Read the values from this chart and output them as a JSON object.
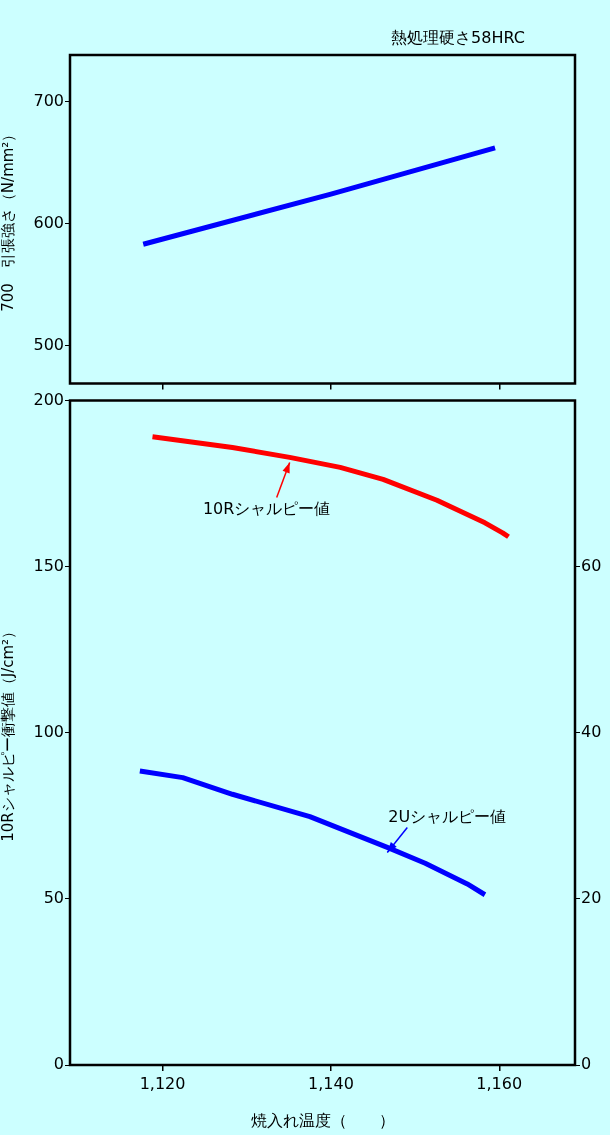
{
  "chart_data": [
    {
      "type": "line",
      "ylabel": "700　引張強さ（N/mm²）",
      "subtitle": "熱処理硬さ58HRC",
      "xlim": [
        1109,
        1169
      ],
      "xticks": [
        {
          "value": 1120,
          "label": null
        },
        {
          "value": 1140,
          "label": null
        },
        {
          "value": 1160,
          "label": null
        }
      ],
      "ylim": [
        469,
        738
      ],
      "yticks": [
        500,
        600,
        700
      ],
      "tick_labels": "y",
      "legend": false,
      "marker": "none",
      "line_style": "solid",
      "series": [
        {
          "color": "#0000ff",
          "x": [
            1117.7,
            1140,
            1159.5
          ],
          "values": [
            583,
            624,
            662
          ]
        }
      ]
    },
    {
      "type": "line",
      "xlabel": "焼入れ温度（　　）",
      "ylabel": "10Rシャルピー衝撃値（J/cm²）",
      "annotations": [
        {
          "text": "10Rシャルピー値",
          "x": 1135.1,
          "y": 182.9
        },
        {
          "text": "2Uシャルピー値",
          "x": 1146.7,
          "y": 65.5
        }
      ],
      "xlim": [
        1109,
        1169
      ],
      "xticks": [
        {
          "value": 1120,
          "label": "1,120"
        },
        {
          "value": 1140,
          "label": "1,140"
        },
        {
          "value": 1160,
          "label": "1,160"
        }
      ],
      "ylim": [
        0,
        200
      ],
      "yticks": [
        0,
        50,
        100,
        150,
        200
      ],
      "y2lim": [
        0,
        80
      ],
      "y2ticks": [
        0,
        20,
        40,
        60
      ],
      "legend": false,
      "marker": "none",
      "line_style": "solid",
      "series": [
        {
          "color": "#ff0000",
          "x": [
            1118.8,
            1128.3,
            1135.1,
            1141.1,
            1146.2,
            1152.6,
            1158.3,
            1160.4,
            1161.1
          ],
          "values": [
            189.1,
            185.9,
            182.9,
            179.9,
            176.3,
            170,
            163.2,
            160.2,
            159
          ]
        },
        {
          "color": "#0000ff",
          "axis": "y2",
          "x": [
            1117.3,
            1122.4,
            1128.3,
            1137.5,
            1146.7,
            1151.2,
            1156.2,
            1158.3
          ],
          "values": [
            35.4,
            34.6,
            32.6,
            29.9,
            26.2,
            24.3,
            21.8,
            20.5
          ]
        }
      ]
    }
  ]
}
